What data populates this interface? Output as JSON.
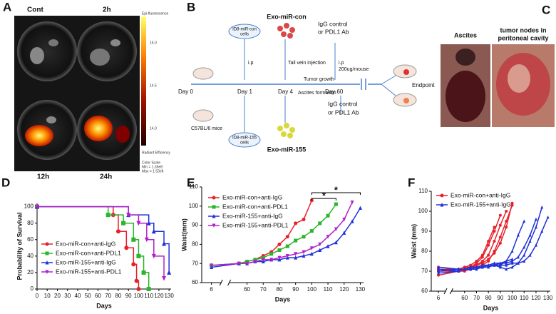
{
  "panels": [
    "A",
    "B",
    "C",
    "D",
    "E",
    "F"
  ],
  "imaging": {
    "labels": [
      "Cont",
      "2h",
      "12h",
      "24h"
    ],
    "colorbar": [
      "Epi-fluorescence",
      "15.0",
      "14.5",
      "14.0",
      "Radiant Efficiency",
      "Color Scale",
      "Min = 1.35e8",
      "Max = 1.53e8"
    ]
  },
  "schedule": {
    "days": [
      "Day 0",
      "Day 1",
      "Day 4",
      "Day 60",
      "Endpoint"
    ],
    "cells_con": [
      "ID8-miR-con",
      "cells"
    ],
    "cells_155": [
      "ID8-miR-155",
      "cells"
    ],
    "ip": "i.p",
    "exo_con": "Exo-miR-con",
    "exo_155": "Exo-miR-155",
    "tail": "Tail vein injection",
    "treat_top": [
      "IgG control",
      "or PDL1 Ab"
    ],
    "treat_bottom": [
      "IgG control",
      "or PDL1 Ab"
    ],
    "dose": [
      "i.p",
      "200ug/mouse"
    ],
    "growth": "Tumor growth",
    "ascites": "Ascites formation",
    "mice": "C57BL/6 mice"
  },
  "photos": {
    "ascites": "Ascites",
    "nodes": [
      "tumor nodes in",
      "peritoneal cavity"
    ]
  },
  "chart_data": [
    {
      "type": "line",
      "step": true,
      "xlabel": "Days",
      "ylabel": "Probability of Survival",
      "xlim": [
        0,
        132
      ],
      "ylim": [
        0,
        104
      ],
      "xticks": [
        0,
        10,
        20,
        30,
        40,
        50,
        60,
        70,
        80,
        90,
        100,
        110,
        120,
        130
      ],
      "yticks": [
        0,
        20,
        40,
        60,
        80,
        100
      ],
      "series": [
        {
          "name": "Exo-miR-con+anti-IgG",
          "color": "#e8202a",
          "marker": "circle",
          "x": [
            0,
            75,
            80,
            88,
            95,
            98,
            100
          ],
          "values": [
            100,
            90,
            70,
            50,
            30,
            10,
            0
          ]
        },
        {
          "name": "Exo-miR-con+anti-PDL1",
          "color": "#2bb52b",
          "marker": "square",
          "x": [
            0,
            70,
            85,
            95,
            100,
            105,
            110
          ],
          "values": [
            100,
            90,
            80,
            60,
            40,
            20,
            0
          ]
        },
        {
          "name": "Exo-miR-155+anti-IgG",
          "color": "#2032d6",
          "marker": "triangle",
          "x": [
            0,
            90,
            110,
            115,
            125,
            130
          ],
          "values": [
            100,
            90,
            80,
            70,
            55,
            20
          ]
        },
        {
          "name": "Exo-miR-155+anti-PDL1",
          "color": "#b022c8",
          "marker": "down",
          "x": [
            0,
            90,
            100,
            108,
            115,
            125
          ],
          "values": [
            100,
            90,
            80,
            60,
            40,
            13
          ]
        }
      ]
    },
    {
      "type": "line",
      "xlabel": "Days",
      "ylabel": "Waist(mm)",
      "xlim": [
        2,
        132
      ],
      "xbreak": [
        10,
        50
      ],
      "ylim": [
        60,
        110
      ],
      "xticks": [
        6,
        60,
        70,
        80,
        90,
        100,
        110,
        120,
        130
      ],
      "yticks": [
        60,
        70,
        80,
        90,
        100,
        110
      ],
      "annotations": [
        {
          "text": "*",
          "x1": 100,
          "x2": 115,
          "y": 104
        },
        {
          "text": "*",
          "x1": 100,
          "x2": 130,
          "y": 107
        }
      ],
      "series": [
        {
          "name": "Exo-miR-con+anti-IgG",
          "color": "#e8202a",
          "marker": "circle",
          "x": [
            6,
            55,
            60,
            65,
            70,
            75,
            80,
            85,
            90,
            95,
            100
          ],
          "values": [
            69,
            70,
            71,
            72,
            74,
            76,
            80,
            84,
            91,
            93,
            103
          ]
        },
        {
          "name": "Exo-miR-con+anti-PDL1",
          "color": "#2bb52b",
          "marker": "square",
          "x": [
            6,
            55,
            60,
            65,
            70,
            75,
            80,
            85,
            90,
            95,
            100,
            105,
            110,
            115
          ],
          "values": [
            69,
            70,
            71,
            72,
            73,
            75,
            77,
            79,
            82,
            84,
            87,
            91,
            95,
            101
          ]
        },
        {
          "name": "Exo-miR-155+anti-IgG",
          "color": "#2032d6",
          "marker": "triangle",
          "x": [
            6,
            55,
            60,
            65,
            70,
            75,
            80,
            85,
            90,
            95,
            100,
            105,
            110,
            115,
            120,
            125,
            130
          ],
          "values": [
            68,
            70,
            70,
            71,
            71,
            72,
            72,
            73,
            73,
            74,
            75,
            77,
            79,
            81,
            86,
            92,
            99
          ]
        },
        {
          "name": "Exo-miR-155+anti-PDL1",
          "color": "#b022c8",
          "marker": "down",
          "x": [
            6,
            55,
            60,
            65,
            70,
            75,
            80,
            85,
            90,
            95,
            100,
            105,
            110,
            115,
            120,
            125
          ],
          "values": [
            69,
            70,
            70,
            71,
            72,
            72,
            73,
            74,
            75,
            76,
            78,
            80,
            84,
            88,
            93,
            102
          ]
        }
      ]
    },
    {
      "type": "line",
      "xlabel": "Days",
      "ylabel": "Waist (mm)",
      "xlim": [
        2,
        132
      ],
      "xbreak": [
        10,
        50
      ],
      "ylim": [
        60,
        110
      ],
      "xticks": [
        6,
        60,
        70,
        80,
        90,
        100,
        110,
        120,
        130
      ],
      "yticks": [
        60,
        70,
        80,
        90,
        100,
        110
      ],
      "series": [
        {
          "name": "Exo-miR-con+anti-IgG",
          "color": "#e8202a",
          "marker": "circle",
          "mice": [
            {
              "x": [
                6,
                55,
                60,
                65,
                70,
                75,
                80,
                85
              ],
              "values": [
                72,
                71,
                72,
                73,
                75,
                78,
                85,
                92
              ]
            },
            {
              "x": [
                6,
                55,
                60,
                65,
                70,
                75,
                80,
                85,
                90
              ],
              "values": [
                70,
                70,
                71,
                72,
                74,
                77,
                83,
                90,
                98
              ]
            },
            {
              "x": [
                6,
                55,
                60,
                65,
                70,
                75,
                80,
                85,
                90,
                95
              ],
              "values": [
                71,
                71,
                71,
                72,
                73,
                75,
                78,
                85,
                93,
                100
              ]
            },
            {
              "x": [
                6,
                55,
                60,
                65,
                70,
                75,
                80,
                85,
                90,
                95,
                100
              ],
              "values": [
                68,
                70,
                70,
                71,
                72,
                73,
                75,
                80,
                87,
                95,
                103
              ]
            },
            {
              "x": [
                6,
                55,
                60,
                65,
                70,
                75,
                80,
                85,
                90,
                95,
                100
              ],
              "values": [
                70,
                71,
                72,
                72,
                73,
                74,
                76,
                79,
                84,
                92,
                104
              ]
            }
          ]
        },
        {
          "name": "Exo-miR-155+anti-IgG",
          "color": "#2032d6",
          "marker": "triangle",
          "mice": [
            {
              "x": [
                6,
                55,
                60,
                65,
                70,
                75,
                80,
                85,
                90,
                95,
                100,
                105,
                110
              ],
              "values": [
                71,
                70,
                71,
                71,
                72,
                72,
                73,
                73,
                73,
                75,
                80,
                88,
                95
              ]
            },
            {
              "x": [
                6,
                55,
                60,
                65,
                70,
                75,
                80,
                85,
                90,
                95,
                100,
                105,
                110,
                115,
                120
              ],
              "values": [
                70,
                71,
                71,
                72,
                72,
                73,
                73,
                73,
                74,
                74,
                75,
                77,
                82,
                88,
                96
              ]
            },
            {
              "x": [
                6,
                55,
                60,
                65,
                70,
                75,
                80,
                85,
                90,
                95,
                100,
                105,
                110,
                115,
                120,
                125,
                130
              ],
              "values": [
                72,
                71,
                71,
                72,
                72,
                72,
                73,
                73,
                73,
                73,
                74,
                74,
                75,
                78,
                83,
                90,
                97
              ]
            },
            {
              "x": [
                6,
                55,
                60,
                65,
                70,
                75,
                80,
                85,
                90,
                95,
                100,
                105,
                110,
                115,
                120,
                125
              ],
              "values": [
                69,
                70,
                71,
                71,
                71,
                72,
                72,
                73,
                72,
                71,
                72,
                74,
                78,
                85,
                92,
                102
              ]
            },
            {
              "x": [
                6,
                55,
                60,
                65,
                70,
                75,
                80,
                85,
                90,
                95,
                100
              ],
              "values": [
                70,
                71,
                71,
                72,
                72,
                73,
                73,
                74,
                74,
                75,
                76
              ]
            }
          ]
        }
      ]
    }
  ]
}
